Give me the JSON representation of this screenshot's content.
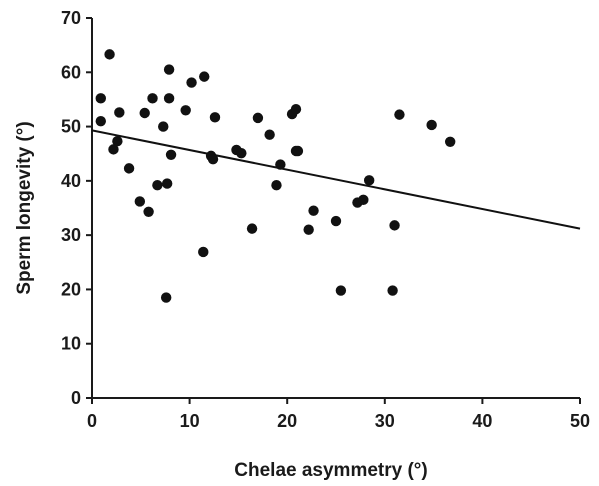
{
  "chart_data": {
    "type": "scatter",
    "title": "",
    "xlabel": "Chelae asymmetry (°)",
    "ylabel": "Sperm longevity (°)",
    "xlim": [
      0,
      50
    ],
    "ylim": [
      0,
      70
    ],
    "x_ticks": [
      0,
      10,
      20,
      30,
      40,
      50
    ],
    "y_ticks": [
      0,
      10,
      20,
      30,
      40,
      50,
      60,
      70
    ],
    "grid": false,
    "legend": "none",
    "point_color": "#111111",
    "points": [
      {
        "x": 0.9,
        "y": 55.2
      },
      {
        "x": 0.9,
        "y": 51.0
      },
      {
        "x": 1.8,
        "y": 63.3
      },
      {
        "x": 2.2,
        "y": 45.8
      },
      {
        "x": 2.6,
        "y": 47.3
      },
      {
        "x": 2.8,
        "y": 52.6
      },
      {
        "x": 3.8,
        "y": 42.3
      },
      {
        "x": 4.9,
        "y": 36.2
      },
      {
        "x": 5.4,
        "y": 52.5
      },
      {
        "x": 5.8,
        "y": 34.3
      },
      {
        "x": 6.2,
        "y": 55.2
      },
      {
        "x": 6.7,
        "y": 39.2
      },
      {
        "x": 7.3,
        "y": 50.0
      },
      {
        "x": 7.6,
        "y": 18.5
      },
      {
        "x": 7.7,
        "y": 39.5
      },
      {
        "x": 7.9,
        "y": 60.5
      },
      {
        "x": 7.9,
        "y": 55.2
      },
      {
        "x": 8.1,
        "y": 44.8
      },
      {
        "x": 9.6,
        "y": 53.0
      },
      {
        "x": 10.2,
        "y": 58.1
      },
      {
        "x": 11.4,
        "y": 26.9
      },
      {
        "x": 11.5,
        "y": 59.2
      },
      {
        "x": 12.2,
        "y": 44.6
      },
      {
        "x": 12.4,
        "y": 44.0
      },
      {
        "x": 12.6,
        "y": 51.7
      },
      {
        "x": 14.8,
        "y": 45.7
      },
      {
        "x": 15.3,
        "y": 45.1
      },
      {
        "x": 16.4,
        "y": 31.2
      },
      {
        "x": 17.0,
        "y": 51.6
      },
      {
        "x": 18.2,
        "y": 48.5
      },
      {
        "x": 18.9,
        "y": 39.2
      },
      {
        "x": 19.3,
        "y": 43.0
      },
      {
        "x": 20.5,
        "y": 52.3
      },
      {
        "x": 20.9,
        "y": 53.2
      },
      {
        "x": 20.9,
        "y": 45.5
      },
      {
        "x": 21.1,
        "y": 45.5
      },
      {
        "x": 22.2,
        "y": 31.0
      },
      {
        "x": 22.7,
        "y": 34.5
      },
      {
        "x": 25.0,
        "y": 32.6
      },
      {
        "x": 25.5,
        "y": 19.8
      },
      {
        "x": 27.2,
        "y": 36.0
      },
      {
        "x": 27.8,
        "y": 36.5
      },
      {
        "x": 28.4,
        "y": 40.1
      },
      {
        "x": 30.8,
        "y": 19.8
      },
      {
        "x": 31.0,
        "y": 31.8
      },
      {
        "x": 31.5,
        "y": 52.2
      },
      {
        "x": 34.8,
        "y": 50.3
      },
      {
        "x": 36.7,
        "y": 47.2
      }
    ],
    "trendline": {
      "x": [
        0,
        50
      ],
      "y": [
        49.3,
        31.2
      ]
    }
  }
}
